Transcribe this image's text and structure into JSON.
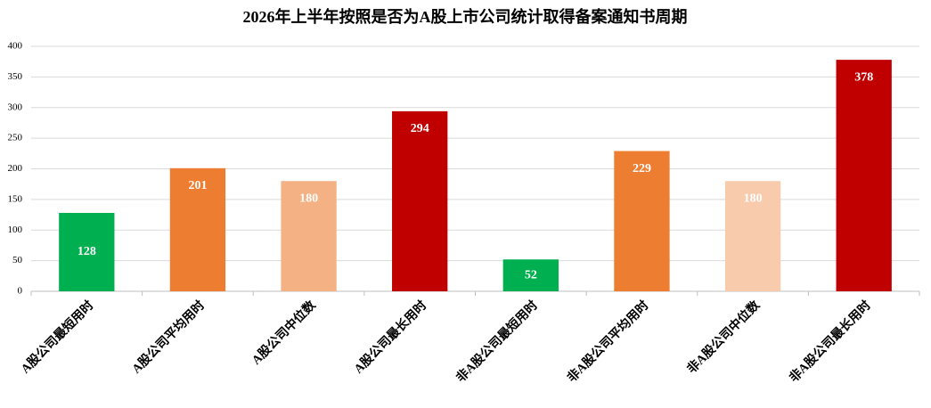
{
  "chart_data": {
    "type": "bar",
    "title": "2026年上半年按照是否为A股上市公司统计取得备案通知书周期",
    "categories": [
      "A股公司最短用时",
      "A股公司平均用时",
      "A股公司中位数",
      "A股公司最长用时",
      "非A股公司最短用时",
      "非A股公司平均用时",
      "非A股公司中位数",
      "非A股公司最长用时"
    ],
    "values": [
      128,
      201,
      180,
      294,
      52,
      229,
      180,
      378
    ],
    "colors": [
      "#00b050",
      "#ed7d31",
      "#f4b183",
      "#c00000",
      "#00b050",
      "#ed7d31",
      "#f8cbad",
      "#c00000"
    ],
    "ylim": [
      0,
      400
    ],
    "yticks": [
      0,
      50,
      100,
      150,
      200,
      250,
      300,
      350,
      400
    ],
    "grid": true
  }
}
